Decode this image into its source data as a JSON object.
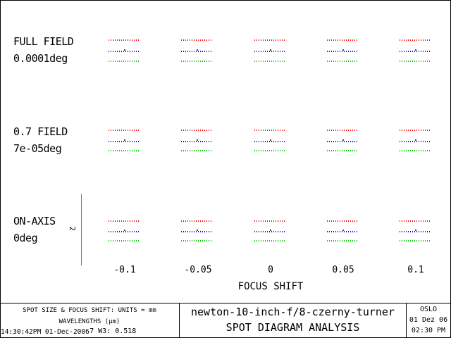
{
  "fields": [
    {
      "name": "FULL FIELD",
      "angle": "0.0001deg"
    },
    {
      "name": "0.7 FIELD",
      "angle": "7e-05deg"
    },
    {
      "name": "ON-AXIS",
      "angle": "0deg"
    }
  ],
  "scale_label": "2",
  "focus_ticks": [
    "-0.1",
    "-0.05",
    "0",
    "0.05",
    "0.1"
  ],
  "xlabel": "FOCUS SHIFT",
  "wavelength_colors": [
    "#ff0000",
    "#0000ff",
    "#00c000"
  ],
  "footer": {
    "units": "SPOT SIZE & FOCUS SHIFT: UNITS = mm",
    "wavelengths": "WAVELENGTHS (µm)",
    "wave_values": "0.517 W3: 0.518",
    "timestamp": "14:30:42PM 01-Dec-2006",
    "lens_name": "newton-10-inch-f/8-czerny-turner",
    "title": "SPOT DIAGRAM ANALYSIS",
    "program": "OSLO",
    "date": "01 Dez 06",
    "time": "02:30 PM"
  }
}
